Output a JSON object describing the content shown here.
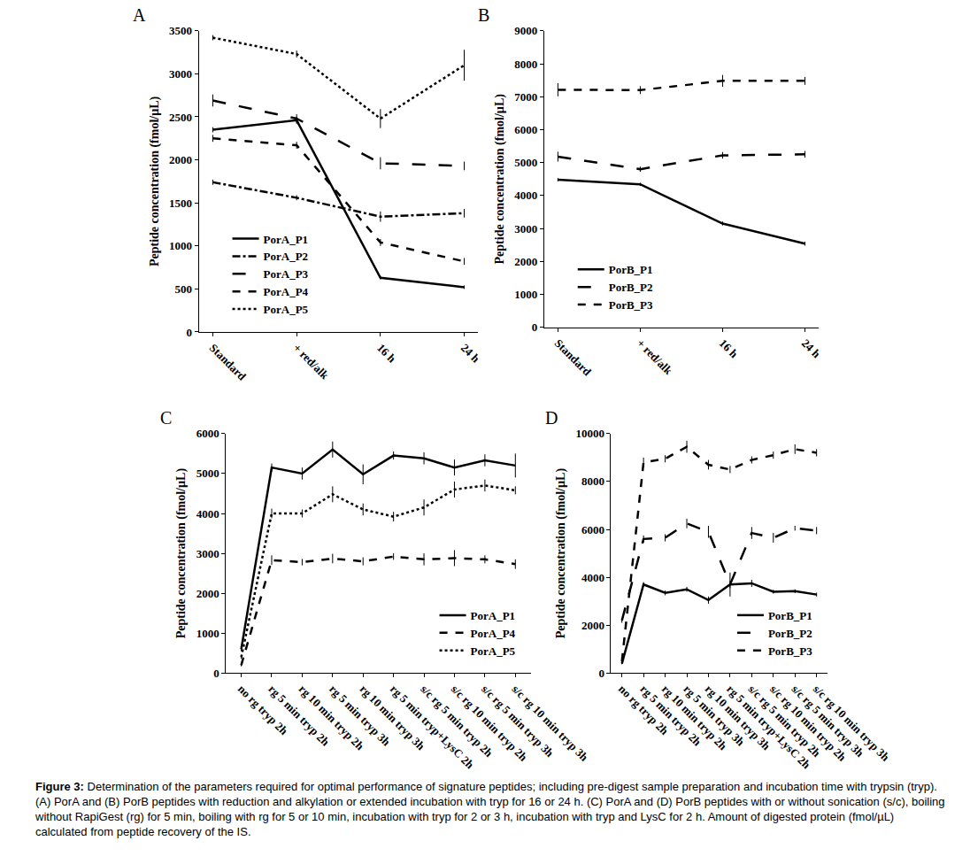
{
  "chart_data": [
    {
      "type": "line",
      "title": "A",
      "y_label": "Peptide concentration (fmol/µL)",
      "categories": [
        "Standard",
        "+ red/alk",
        "16 h",
        "24 h"
      ],
      "ylim": [
        0,
        3500
      ],
      "yticks": [
        0,
        500,
        1000,
        1500,
        2000,
        2500,
        3000,
        3500
      ],
      "legend": "lower left",
      "series": [
        {
          "name": "PorA_P1",
          "color": "#000000",
          "line_style": "solid",
          "values": [
            2350,
            2460,
            630,
            520
          ],
          "errors": [
            30,
            40,
            20,
            20
          ]
        },
        {
          "name": "PorA_P2",
          "color": "#000000",
          "line_style": "dashdot",
          "values": [
            1740,
            1560,
            1340,
            1380
          ],
          "errors": [
            30,
            30,
            60,
            50
          ]
        },
        {
          "name": "PorA_P3",
          "color": "#000000",
          "line_style": "longdash",
          "values": [
            2690,
            2480,
            1960,
            1930
          ],
          "errors": [
            70,
            50,
            70,
            50
          ]
        },
        {
          "name": "PorA_P4",
          "color": "#000000",
          "line_style": "dash",
          "values": [
            2250,
            2170,
            1040,
            820
          ],
          "errors": [
            40,
            40,
            40,
            40
          ]
        },
        {
          "name": "PorA_P5",
          "color": "#000000",
          "line_style": "dot",
          "values": [
            3420,
            3230,
            2480,
            3100
          ],
          "errors": [
            30,
            40,
            110,
            180
          ]
        }
      ]
    },
    {
      "type": "line",
      "title": "B",
      "y_label": "Peptide concentration (fmol/µL)",
      "categories": [
        "Standard",
        "+ red/alk",
        "16 h",
        "24 h"
      ],
      "ylim": [
        0,
        9000
      ],
      "yticks": [
        0,
        1000,
        2000,
        3000,
        4000,
        5000,
        6000,
        7000,
        8000,
        9000
      ],
      "legend": "lower left",
      "series": [
        {
          "name": "PorB_P1",
          "color": "#000000",
          "line_style": "solid",
          "values": [
            4480,
            4340,
            3150,
            2540
          ],
          "errors": [
            50,
            50,
            60,
            60
          ]
        },
        {
          "name": "PorB_P2",
          "color": "#000000",
          "line_style": "longdash",
          "values": [
            5180,
            4800,
            5220,
            5250
          ],
          "errors": [
            150,
            80,
            100,
            100
          ]
        },
        {
          "name": "PorB_P3",
          "color": "#000000",
          "line_style": "dash",
          "values": [
            7210,
            7200,
            7480,
            7480
          ],
          "errors": [
            200,
            120,
            180,
            120
          ]
        }
      ]
    },
    {
      "type": "line",
      "title": "C",
      "y_label": "Peptide concentration (fmol/µL)",
      "categories": [
        "no rg tryp 2h",
        "rg 5 min tryp 2h",
        "rg 10 min tryp 2h",
        "rg 5 min tryp 3h",
        "rg 10 min tryp 3h",
        "rg 5 min tryp+LysC 2h",
        "s/c rg 5 min tryp 2h",
        "s/c rg 10 min tryp 2h",
        "s/c rg 5 min tryp 3h",
        "s/c rg 10 min tryp 3h"
      ],
      "ylim": [
        0,
        6000
      ],
      "yticks": [
        0,
        1000,
        2000,
        3000,
        4000,
        5000,
        6000
      ],
      "legend": "lower right",
      "series": [
        {
          "name": "PorA_P1",
          "color": "#000000",
          "line_style": "solid",
          "values": [
            600,
            5150,
            5000,
            5600,
            4980,
            5450,
            5380,
            5150,
            5330,
            5200
          ],
          "errors": [
            50,
            100,
            150,
            200,
            250,
            100,
            150,
            200,
            150,
            300
          ]
        },
        {
          "name": "PorA_P4",
          "color": "#000000",
          "line_style": "dash",
          "values": [
            200,
            2830,
            2780,
            2870,
            2800,
            2920,
            2850,
            2880,
            2850,
            2730
          ],
          "errors": [
            30,
            120,
            80,
            120,
            100,
            80,
            150,
            200,
            100,
            120
          ]
        },
        {
          "name": "PorA_P5",
          "color": "#000000",
          "line_style": "dot",
          "values": [
            400,
            4000,
            4000,
            4480,
            4100,
            3920,
            4150,
            4600,
            4700,
            4580
          ],
          "errors": [
            40,
            120,
            100,
            200,
            150,
            120,
            200,
            200,
            150,
            100
          ]
        }
      ]
    },
    {
      "type": "line",
      "title": "D",
      "y_label": "Peptide concentration (fmol/µL)",
      "categories": [
        "no rg tryp 2h",
        "rg 5 min tryp 2h",
        "rg 10 min tryp 2h",
        "rg 5 min tryp 3h",
        "rg 10 min tryp 3h",
        "rg 5 min tryp+LysC 2h",
        "s/c rg 5 min tryp 2h",
        "s/c rg 10 min tryp 2h",
        "s/c rg 5 min tryp 3h",
        "s/c rg 10 min tryp 3h"
      ],
      "ylim": [
        0,
        10000
      ],
      "yticks": [
        0,
        2000,
        4000,
        6000,
        8000,
        10000
      ],
      "legend": "lower right",
      "series": [
        {
          "name": "PorB_P1",
          "color": "#000000",
          "line_style": "solid",
          "values": [
            400,
            3700,
            3350,
            3500,
            3050,
            3700,
            3750,
            3400,
            3420,
            3280
          ],
          "errors": [
            30,
            100,
            100,
            100,
            150,
            150,
            150,
            80,
            80,
            80
          ]
        },
        {
          "name": "PorB_P2",
          "color": "#000000",
          "line_style": "longdash",
          "values": [
            2200,
            5600,
            5650,
            6250,
            5900,
            3700,
            5850,
            5650,
            6050,
            5950
          ],
          "errors": [
            100,
            150,
            150,
            200,
            250,
            500,
            250,
            200,
            100,
            150
          ]
        },
        {
          "name": "PorB_P3",
          "color": "#000000",
          "line_style": "dash",
          "values": [
            500,
            8800,
            8950,
            9450,
            8700,
            8500,
            8900,
            9100,
            9350,
            9200
          ],
          "errors": [
            40,
            200,
            150,
            250,
            200,
            150,
            150,
            150,
            200,
            150
          ]
        }
      ]
    }
  ],
  "caption_label": "Figure 3:",
  "caption": "Determination of the parameters required for optimal performance of signature peptides; including pre-digest sample preparation and incubation time with trypsin (tryp). (A) PorA and (B) PorB peptides with reduction and alkylation or extended incubation with tryp for 16 or 24 h. (C) PorA and (D) PorB peptides with or without sonication (s/c), boiling without RapiGest (rg) for 5 min, boiling with rg for 5 or 10 min, incubation with tryp for 2 or 3 h, incubation with tryp and LysC for 2 h. Amount of digested protein (fmol/µL) calculated from peptide recovery of the IS."
}
